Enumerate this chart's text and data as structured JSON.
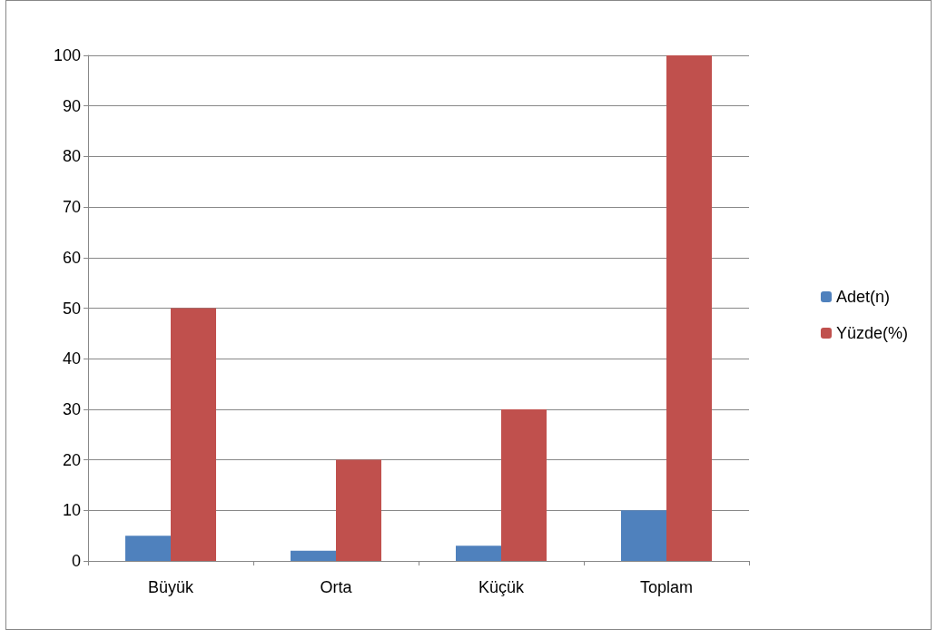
{
  "chart_data": {
    "type": "bar",
    "categories": [
      "Büyük",
      "Orta",
      "Küçük",
      "Toplam"
    ],
    "series": [
      {
        "name": "Adet(n)",
        "color": "#4f81bd",
        "values": [
          5,
          2,
          3,
          10
        ]
      },
      {
        "name": "Yüzde(%)",
        "color": "#c0504d",
        "values": [
          50,
          20,
          30,
          100
        ]
      }
    ],
    "ylim": [
      0,
      100
    ],
    "yticks": [
      0,
      10,
      20,
      30,
      40,
      50,
      60,
      70,
      80,
      90,
      100
    ],
    "grid": "y",
    "legend": "right"
  }
}
